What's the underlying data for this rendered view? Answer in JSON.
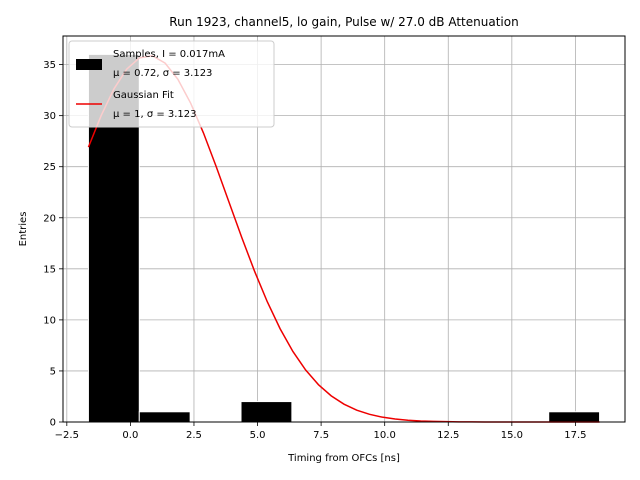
{
  "chart_data": {
    "type": "bar",
    "title": "Run 1923, channel5, lo gain, Pulse w/ 27.0 dB Attenuation",
    "xlabel": "Timing from OFCs [ns]",
    "ylabel": "Entries",
    "xlim": [
      -2.65,
      19.45
    ],
    "ylim": [
      0,
      37.8
    ],
    "xticks": [
      -2.5,
      0.0,
      2.5,
      5.0,
      7.5,
      10.0,
      12.5,
      15.0,
      17.5
    ],
    "xtick_labels": [
      "−2.5",
      "0.0",
      "2.5",
      "5.0",
      "7.5",
      "10.0",
      "12.5",
      "15.0",
      "17.5"
    ],
    "yticks": [
      0,
      5,
      10,
      15,
      20,
      25,
      30,
      35
    ],
    "ytick_labels": [
      "0",
      "5",
      "10",
      "15",
      "20",
      "25",
      "30",
      "35"
    ],
    "grid": true,
    "legend_position": "top-left",
    "histogram": {
      "name_line1": "Samples, I = 0.017mA",
      "name_line2": "μ = 0.72, σ = 3.123",
      "color": "#000000",
      "bins": [
        {
          "x0": -1.65,
          "x1": 0.35,
          "count": 36
        },
        {
          "x0": 0.35,
          "x1": 2.35,
          "count": 1
        },
        {
          "x0": 4.35,
          "x1": 6.35,
          "count": 2
        },
        {
          "x0": 16.45,
          "x1": 18.45,
          "count": 1
        }
      ]
    },
    "fit": {
      "name_line1": "Gaussian Fit",
      "name_line2": "μ = 1, σ = 3.123",
      "color": "#ee0000",
      "mu": 0.72,
      "sigma": 3.123,
      "amplitude": 35.9,
      "x_range": [
        -1.65,
        18.45
      ]
    }
  }
}
